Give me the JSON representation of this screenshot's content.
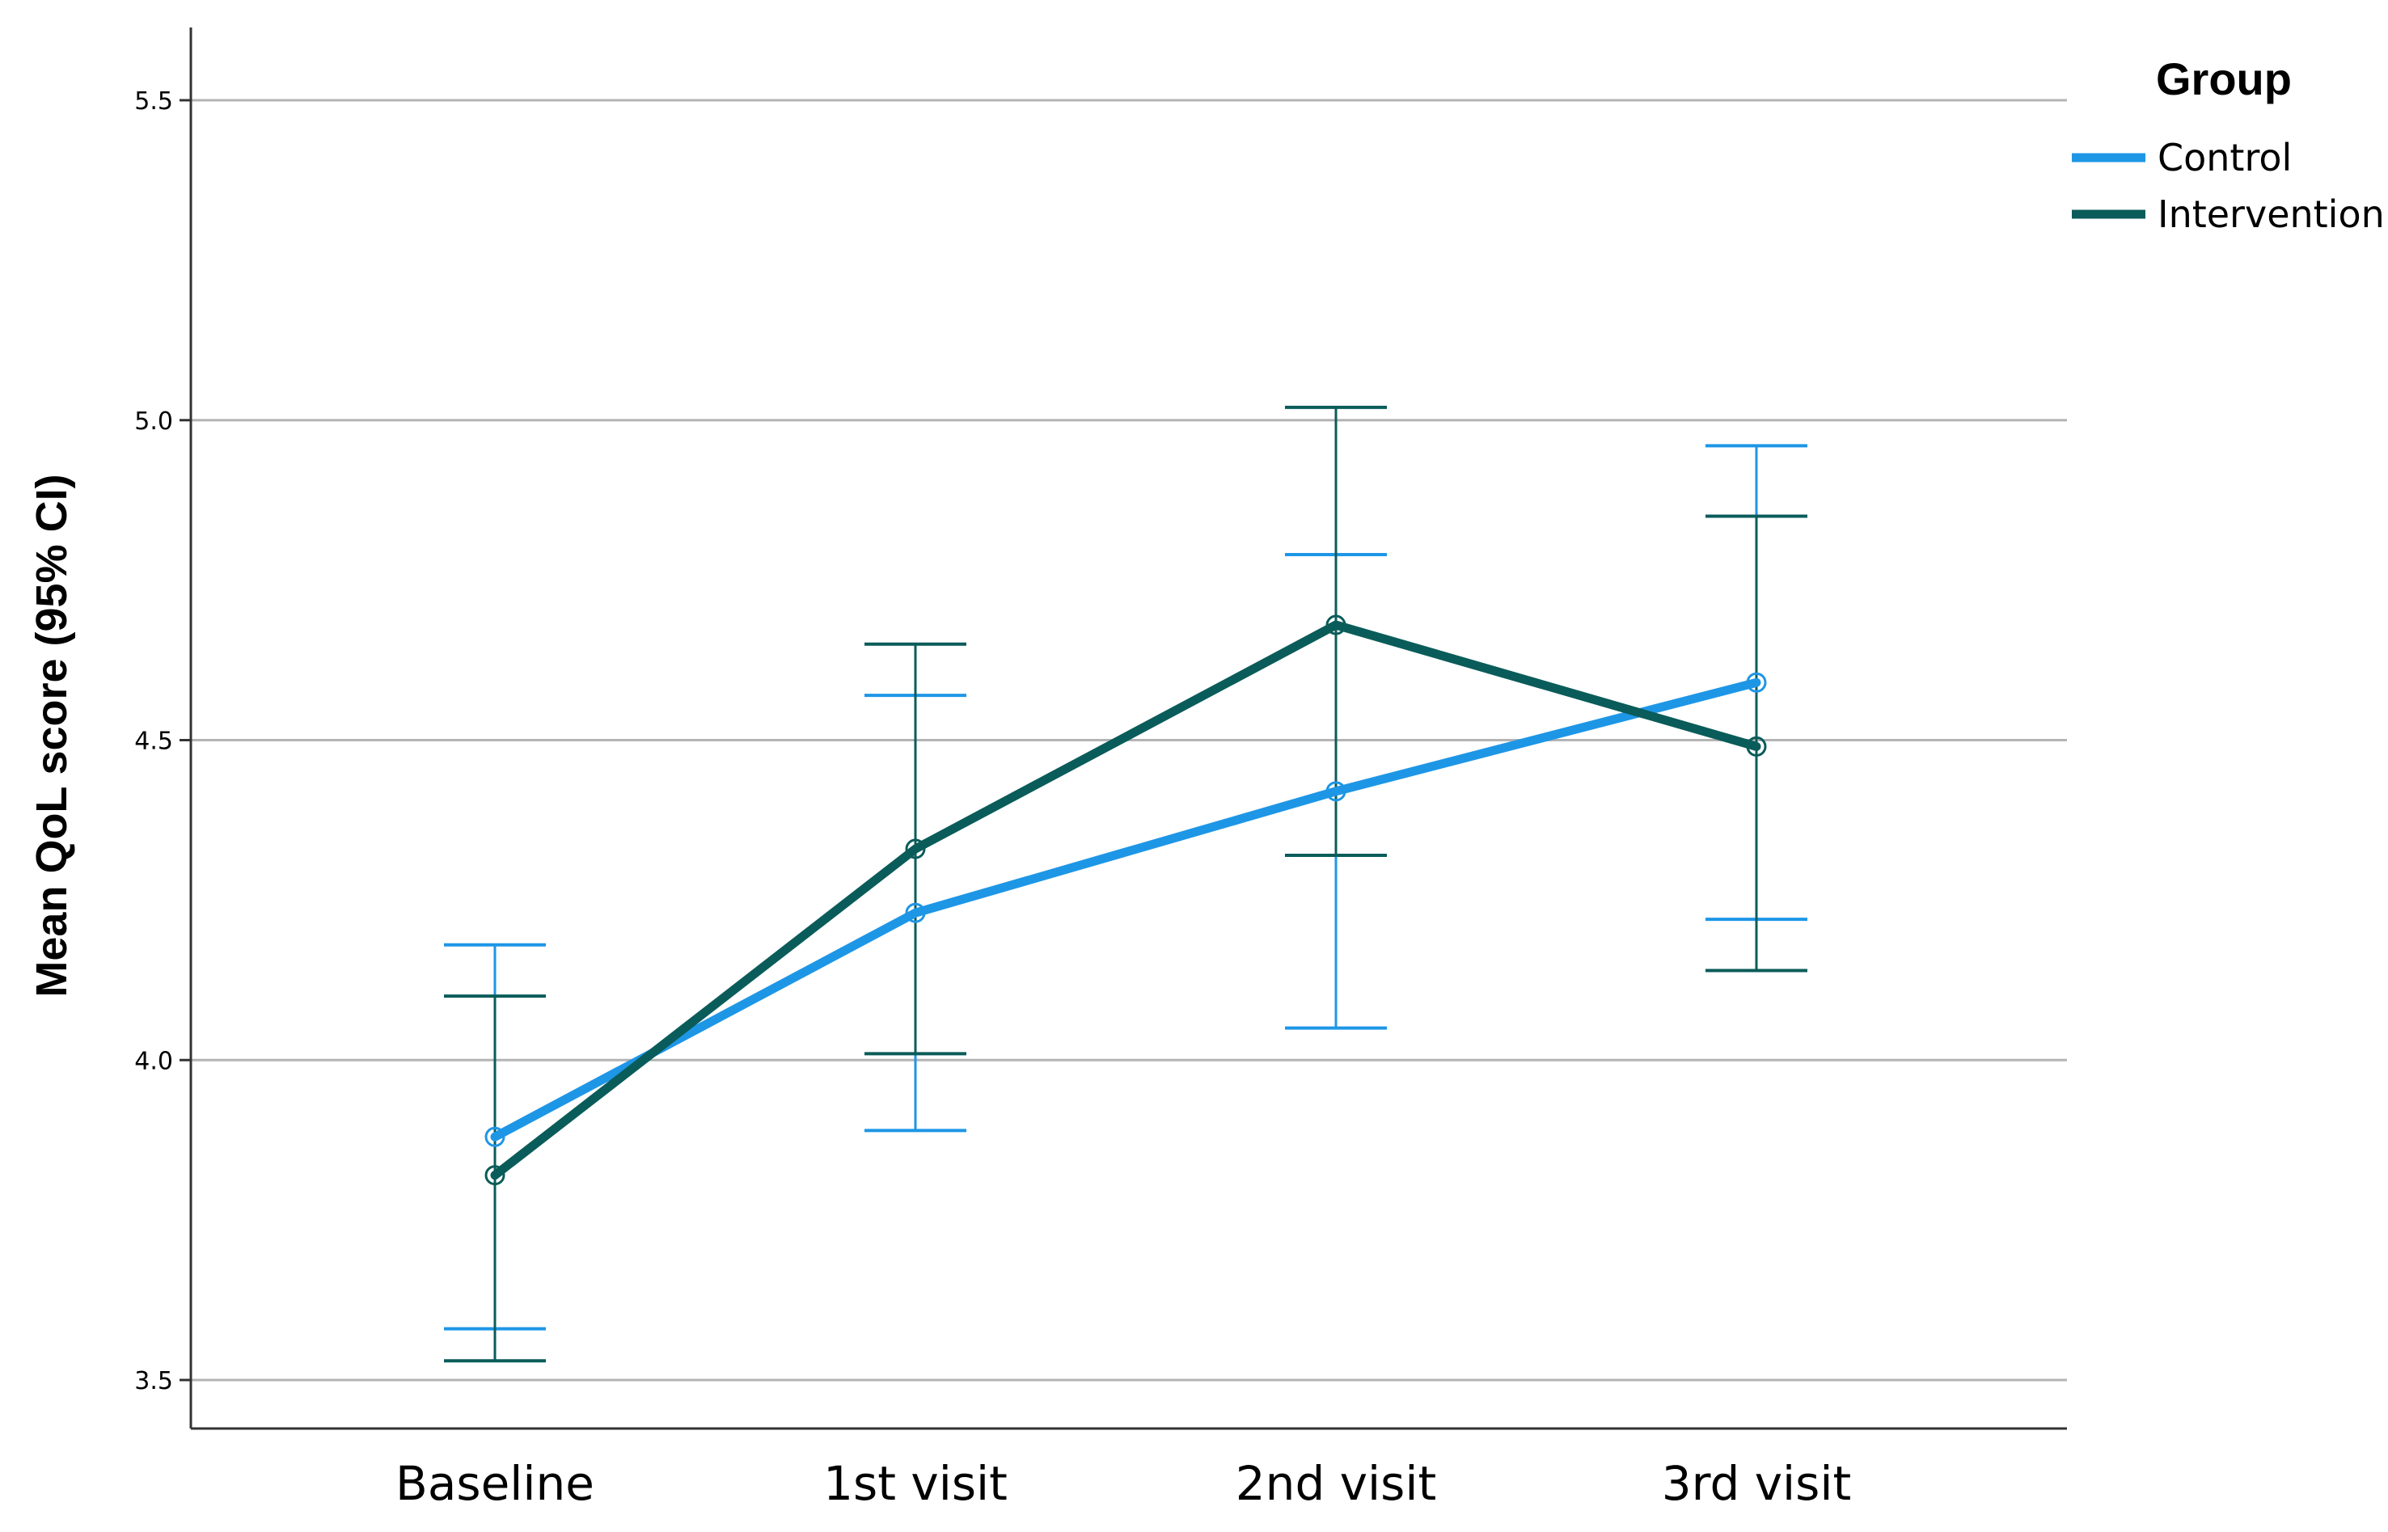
{
  "chart_data": {
    "type": "line",
    "title": "",
    "xlabel": "",
    "ylabel": "Mean QoL score (95% CI)",
    "categories": [
      "Baseline",
      "1st visit",
      "2nd visit",
      "3rd visit"
    ],
    "ylim": [
      3.45,
      5.6
    ],
    "yticks": [
      3.5,
      4.0,
      4.5,
      5.0,
      5.5
    ],
    "ytick_labels": [
      "3.5",
      "4.0",
      "4.5",
      "5.0",
      "5.5"
    ],
    "grid": true,
    "legend": {
      "title": "Group",
      "placement": "top-right"
    },
    "series": [
      {
        "name": "Control",
        "color": "#1e96e6",
        "values": [
          3.88,
          4.23,
          4.42,
          4.59
        ],
        "ci_lower": [
          3.58,
          3.89,
          4.05,
          4.22
        ],
        "ci_upper": [
          4.18,
          4.57,
          4.79,
          4.96
        ]
      },
      {
        "name": "Intervention",
        "color": "#0a5c5a",
        "values": [
          3.82,
          4.33,
          4.68,
          4.49
        ],
        "ci_lower": [
          3.53,
          4.01,
          4.32,
          4.14
        ],
        "ci_upper": [
          4.1,
          4.65,
          5.02,
          4.85
        ]
      }
    ]
  }
}
